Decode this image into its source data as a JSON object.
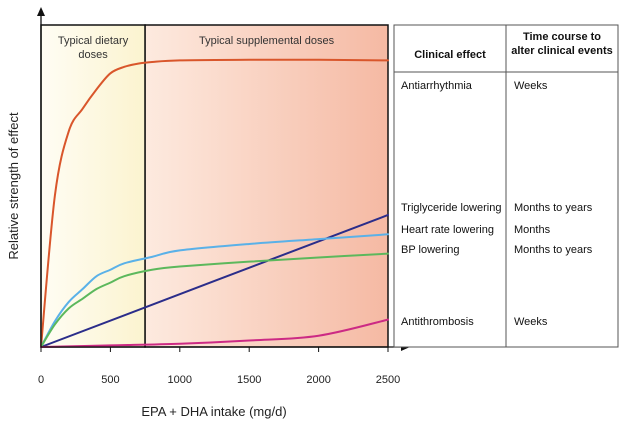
{
  "chart_data": {
    "type": "line",
    "xlabel": "EPA + DHA intake (mg/d)",
    "ylabel": "Relative strength of effect",
    "xlim": [
      0,
      2500
    ],
    "ylim": [
      0,
      1
    ],
    "x_ticks": [
      0,
      500,
      1000,
      1500,
      2000,
      2500
    ],
    "y_ticks_shown": false,
    "grid": false,
    "regions": [
      {
        "label": [
          "Typical dietary",
          "doses"
        ],
        "x_start": 0,
        "x_end": 750,
        "color": "#fdf8e0"
      },
      {
        "label": [
          "Typical supplemental doses"
        ],
        "x_start": 750,
        "x_end": 2500,
        "color": "#f7c2ad"
      }
    ],
    "series": [
      {
        "name": "Antiarrhythmia",
        "color": "#d9562b",
        "x": [
          0,
          100,
          200,
          300,
          400,
          500,
          600,
          700,
          800,
          1000,
          1500,
          2000,
          2500
        ],
        "y": [
          0.0,
          0.47,
          0.67,
          0.74,
          0.8,
          0.85,
          0.87,
          0.88,
          0.885,
          0.89,
          0.892,
          0.892,
          0.89
        ]
      },
      {
        "name": "Triglyceride lowering",
        "color": "#2b2d8a",
        "x": [
          0,
          2500
        ],
        "y": [
          0.0,
          0.41
        ]
      },
      {
        "name": "Heart rate lowering",
        "color": "#5ab1e8",
        "x": [
          0,
          100,
          200,
          300,
          400,
          500,
          600,
          800,
          1000,
          1500,
          2000,
          2500
        ],
        "y": [
          0.0,
          0.08,
          0.14,
          0.18,
          0.22,
          0.24,
          0.26,
          0.28,
          0.3,
          0.32,
          0.335,
          0.35
        ]
      },
      {
        "name": "BP lowering",
        "color": "#5cb85c",
        "x": [
          0,
          100,
          200,
          300,
          400,
          500,
          600,
          800,
          1000,
          1500,
          2000,
          2500
        ],
        "y": [
          0.0,
          0.07,
          0.12,
          0.15,
          0.18,
          0.2,
          0.22,
          0.24,
          0.25,
          0.265,
          0.278,
          0.29
        ]
      },
      {
        "name": "Antithrombosis",
        "color": "#cc2a84",
        "x": [
          0,
          500,
          1000,
          1500,
          2000,
          2500
        ],
        "y": [
          0.0,
          0.005,
          0.01,
          0.02,
          0.035,
          0.085
        ]
      }
    ]
  },
  "table": {
    "headers": [
      "Clinical effect",
      [
        "Time course to",
        "alter clinical events"
      ]
    ],
    "rows": [
      {
        "effect": "Antiarrhythmia",
        "time": "Weeks"
      },
      {
        "effect": "Triglyceride lowering",
        "time": "Months to years"
      },
      {
        "effect": "Heart rate lowering",
        "time": "Months"
      },
      {
        "effect": "BP lowering",
        "time": "Months to years"
      },
      {
        "effect": "Antithrombosis",
        "time": "Weeks"
      }
    ]
  }
}
